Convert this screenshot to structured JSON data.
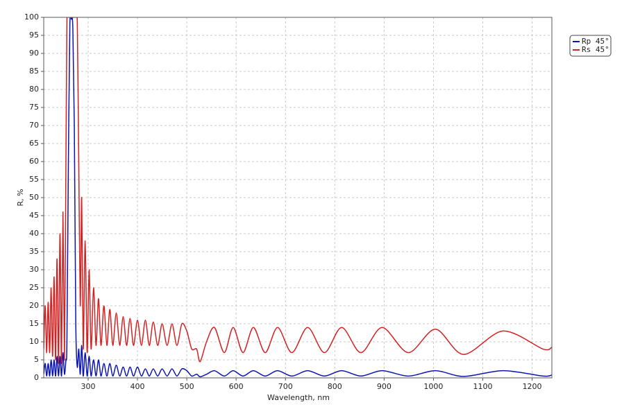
{
  "chart_data": {
    "type": "line",
    "x_label": "Wavelength, nm",
    "y_label": "R, %",
    "x": [
      210,
      213,
      216,
      219,
      222,
      225,
      228,
      231,
      234,
      237,
      240,
      243,
      246,
      249,
      252,
      255,
      257,
      260,
      263,
      266,
      269,
      272,
      275,
      278,
      281,
      284,
      287,
      290,
      294,
      298,
      302,
      306,
      311,
      316,
      321,
      326,
      332,
      338,
      344,
      350,
      357,
      364,
      371,
      378,
      385,
      392,
      400,
      408,
      416,
      424,
      432,
      441,
      450,
      460,
      470,
      480,
      490,
      500,
      510,
      520,
      527,
      540,
      556,
      576,
      594,
      614,
      635,
      659,
      684,
      713,
      745,
      779,
      814,
      853,
      896,
      949,
      1004,
      1061,
      1141,
      1222,
      1240
    ],
    "series": [
      {
        "name": "Rp 45°",
        "color": "#0a14b4",
        "values": [
          1,
          4,
          0.5,
          4,
          0.5,
          5,
          0.5,
          5,
          0.5,
          6,
          0.5,
          6,
          0.5,
          7,
          1,
          5,
          10,
          60,
          98,
          99.5,
          97,
          70,
          15,
          3,
          8,
          1,
          9,
          0.5,
          7,
          0.5,
          6,
          0.5,
          5,
          0.5,
          5,
          0.5,
          4,
          0.5,
          4,
          0.5,
          3.5,
          0.5,
          3,
          0.5,
          3,
          0.5,
          3,
          0.5,
          2.5,
          0.5,
          2.5,
          0.5,
          2.5,
          0.5,
          2.5,
          0.5,
          2.5,
          2,
          0.5,
          1,
          0.3,
          1,
          2,
          0.5,
          2,
          0.5,
          2,
          0.5,
          2,
          0.5,
          2,
          0.5,
          2,
          0.5,
          2,
          0.5,
          2,
          0.4,
          2,
          0.5,
          0.8
        ]
      },
      {
        "name": "Rs 45°",
        "color": "#d42020",
        "values": [
          8,
          20,
          7,
          21,
          7,
          25,
          6,
          28,
          5,
          33,
          4,
          40,
          4,
          46,
          5,
          60,
          99,
          100,
          100,
          100,
          100,
          100,
          100,
          99,
          60,
          20,
          50,
          8,
          38,
          7,
          30,
          8,
          25,
          9,
          22,
          9,
          20,
          9,
          19,
          9,
          18,
          9,
          17,
          9,
          16.5,
          9,
          16,
          9,
          16,
          9,
          15.5,
          9,
          15,
          9,
          15,
          9,
          15,
          13,
          8,
          8,
          4.5,
          10,
          14,
          7,
          14,
          7,
          14,
          7,
          14,
          7,
          14,
          7,
          14,
          7,
          14,
          7,
          13.5,
          6.5,
          13,
          8,
          8.5
        ]
      }
    ],
    "xlim": [
      210,
      1240
    ],
    "ylim": [
      0,
      100
    ],
    "xticks": [
      300,
      400,
      500,
      600,
      700,
      800,
      900,
      1000,
      1100,
      1200
    ],
    "yticks": [
      0,
      5,
      10,
      15,
      20,
      25,
      30,
      35,
      40,
      45,
      50,
      55,
      60,
      65,
      70,
      75,
      80,
      85,
      90,
      95,
      100
    ],
    "grid": true,
    "legend": "outside-top-right"
  }
}
